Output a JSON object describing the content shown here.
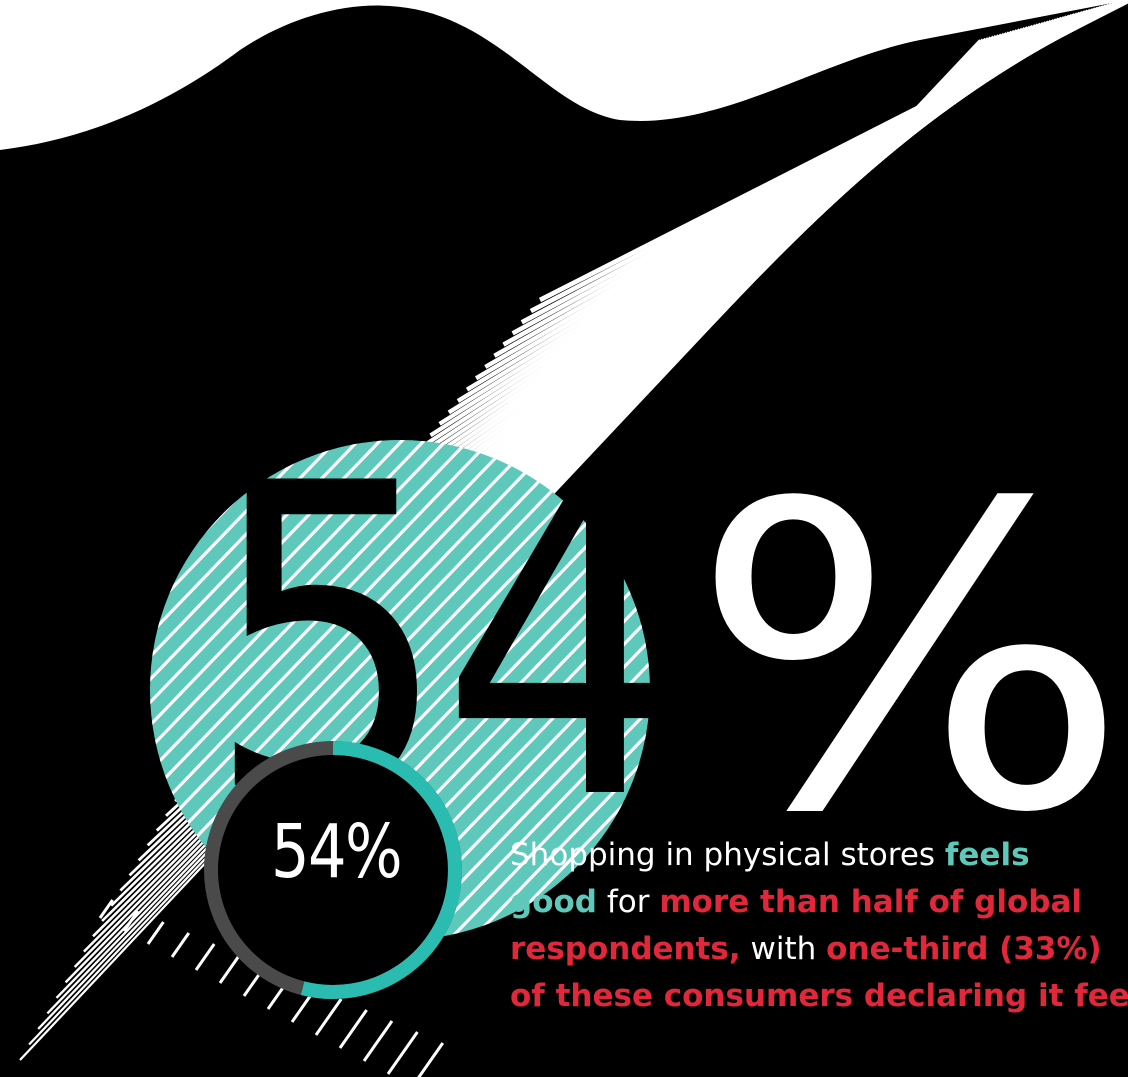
{
  "colors": {
    "background": "#000000",
    "white": "#ffffff",
    "accent_teal": "#5ec9bb",
    "ring_teal": "#2abcb0",
    "ring_track": "#4a4a4a",
    "highlight_red": "#e0283a"
  },
  "headline": {
    "number": "54",
    "percent_sign": "%"
  },
  "ring": {
    "label": "54%",
    "value": 0.54
  },
  "caption": {
    "segments": [
      {
        "text": "Shopping in physical stores ",
        "style": "plain"
      },
      {
        "text": "feels",
        "style": "teal"
      },
      {
        "text": "good",
        "style": "teal"
      },
      {
        "text": " for ",
        "style": "plain"
      },
      {
        "text": "more than half of global",
        "style": "red"
      },
      {
        "text": "respondents,",
        "style": "red"
      },
      {
        "text": " with ",
        "style": "plain"
      },
      {
        "text": "one-third (33%)",
        "style": "red"
      },
      {
        "text": "of these consumers declaring it feels",
        "style": "red"
      }
    ]
  }
}
